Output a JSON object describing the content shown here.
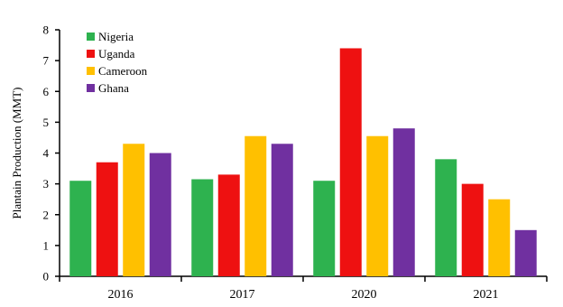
{
  "chart_data": {
    "type": "bar",
    "title": "",
    "xlabel": "",
    "ylabel": "Plantain Production (MMT)",
    "ylim": [
      0,
      8
    ],
    "yticks": [
      0,
      1,
      2,
      3,
      4,
      5,
      6,
      7,
      8
    ],
    "grid": false,
    "legend_position": "top-left",
    "categories": [
      "2016",
      "2017",
      "2020",
      "2021"
    ],
    "series": [
      {
        "name": "Nigeria",
        "color": "#2eb24f",
        "values": [
          3.1,
          3.15,
          3.1,
          3.8
        ]
      },
      {
        "name": "Uganda",
        "color": "#ee1111",
        "values": [
          3.7,
          3.3,
          7.4,
          3.0
        ]
      },
      {
        "name": "Cameroon",
        "color": "#ffc000",
        "values": [
          4.3,
          4.55,
          4.55,
          2.5
        ]
      },
      {
        "name": "Ghana",
        "color": "#7030a0",
        "values": [
          4.0,
          4.3,
          4.8,
          1.5
        ]
      }
    ]
  }
}
